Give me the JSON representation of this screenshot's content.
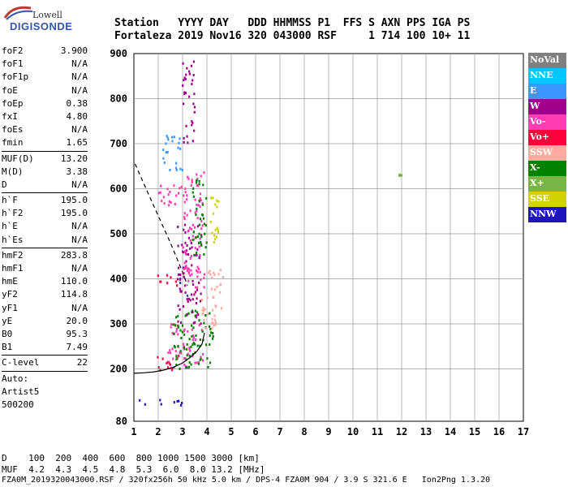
{
  "logo": {
    "line1": "Lowell",
    "line2": "DIGISONDE"
  },
  "header": {
    "labels": "Station   YYYY DAY   DDD HHMMSS P1  FFS S AXN PPS IGA PS",
    "values": "Fortaleza 2019 Nov16 320 043000 RSF     1 714 100 10+ 11"
  },
  "params": {
    "group1": [
      {
        "label": "foF2",
        "value": "3.900"
      },
      {
        "label": "foF1",
        "value": "N/A"
      },
      {
        "label": "foF1p",
        "value": "N/A"
      },
      {
        "label": "foE",
        "value": "N/A"
      },
      {
        "label": "foEp",
        "value": "0.38"
      },
      {
        "label": "fxI",
        "value": "4.80"
      },
      {
        "label": "foEs",
        "value": "N/A"
      },
      {
        "label": "fmin",
        "value": "1.65"
      }
    ],
    "group2": [
      {
        "label": "MUF(D)",
        "value": "13.20"
      },
      {
        "label": "M(D)",
        "value": "3.38"
      },
      {
        "label": "D",
        "value": "N/A"
      }
    ],
    "group3": [
      {
        "label": "h`F",
        "value": "195.0"
      },
      {
        "label": "h`F2",
        "value": "195.0"
      },
      {
        "label": "h`E",
        "value": "N/A"
      },
      {
        "label": "h`Es",
        "value": "N/A"
      }
    ],
    "group4": [
      {
        "label": "hmF2",
        "value": "283.8"
      },
      {
        "label": "hmF1",
        "value": "N/A"
      },
      {
        "label": "hmE",
        "value": "110.0"
      },
      {
        "label": "yF2",
        "value": "114.8"
      },
      {
        "label": "yF1",
        "value": "N/A"
      },
      {
        "label": "yE",
        "value": "20.0"
      },
      {
        "label": "B0",
        "value": "95.3"
      },
      {
        "label": "B1",
        "value": "7.49"
      }
    ],
    "group5": [
      {
        "label": "C-level",
        "value": "22"
      }
    ],
    "auto": [
      "Auto:",
      "Artist5",
      "500200"
    ]
  },
  "legend": [
    {
      "label": "NoVal",
      "color": "#808080"
    },
    {
      "label": "NNE",
      "color": "#00c8ff"
    },
    {
      "label": "E",
      "color": "#3c96ff"
    },
    {
      "label": "W",
      "color": "#a0008c"
    },
    {
      "label": "Vo-",
      "color": "#ff3cb4"
    },
    {
      "label": "Vo+",
      "color": "#ff003c"
    },
    {
      "label": "SSW",
      "color": "#ffaaa0"
    },
    {
      "label": "X-",
      "color": "#008200"
    },
    {
      "label": "X+",
      "color": "#78b446"
    },
    {
      "label": "SSE",
      "color": "#d2d200"
    },
    {
      "label": "NNW",
      "color": "#1e14be"
    }
  ],
  "bottom": {
    "line1": "D    100  200  400  600  800 1000 1500 3000 [km]",
    "line2": "MUF  4.2  4.3  4.5  4.8  5.3  6.0  8.0 13.2 [MHz]",
    "line3": "FZA0M_2019320043000.RSF / 320fx256h 50 kHz 5.0 km / DPS-4 FZA0M 904 / 3.9 S 321.6 E   Ion2Png 1.3.20"
  },
  "chart_data": {
    "type": "scatter",
    "x_ticks": [
      "1",
      "2",
      "3",
      "4",
      "5",
      "6",
      "7",
      "8",
      "9",
      "10",
      "11",
      "12",
      "13",
      "14",
      "15",
      "16",
      "17"
    ],
    "y_ticks": [
      "80",
      "200",
      "300",
      "400",
      "500",
      "600",
      "700",
      "800",
      "900"
    ],
    "xlim": [
      1,
      17
    ],
    "ylim": [
      80,
      900
    ],
    "y_axis_note": "non-linear height axis (80 km at bottom, 100 km per grid line above 200 km)",
    "profile_curve": {
      "x": [
        1.0,
        1.4,
        1.8,
        2.2,
        2.6,
        3.0,
        3.3,
        3.6,
        3.8,
        3.9
      ],
      "y": [
        190,
        191,
        193,
        197,
        203,
        213,
        225,
        240,
        255,
        280
      ]
    },
    "muf_curve": {
      "x": [
        1.05,
        1.5,
        2.0,
        2.5,
        3.0,
        3.2
      ],
      "y": [
        655,
        600,
        540,
        480,
        415,
        385
      ]
    },
    "clusters": [
      {
        "code": "Vo+",
        "x": [
          1.9,
          2.9
        ],
        "y": [
          195,
          230
        ]
      },
      {
        "code": "Vo-",
        "x": [
          2.4,
          3.9
        ],
        "y": [
          200,
          300
        ]
      },
      {
        "code": "X-",
        "x": [
          2.6,
          4.3
        ],
        "y": [
          200,
          330
        ]
      },
      {
        "code": "SSW",
        "x": [
          3.8,
          4.7
        ],
        "y": [
          290,
          420
        ]
      },
      {
        "code": "W",
        "x": [
          2.8,
          3.8
        ],
        "y": [
          300,
          520
        ]
      },
      {
        "code": "Vo-",
        "x": [
          3.0,
          3.9
        ],
        "y": [
          380,
          640
        ]
      },
      {
        "code": "X-",
        "x": [
          3.4,
          4.0
        ],
        "y": [
          450,
          620
        ]
      },
      {
        "code": "Vo+",
        "x": [
          1.9,
          2.8
        ],
        "y": [
          385,
          410
        ]
      },
      {
        "code": "Vo-",
        "x": [
          2.0,
          3.0
        ],
        "y": [
          560,
          610
        ]
      },
      {
        "code": "E",
        "x": [
          2.2,
          3.0
        ],
        "y": [
          640,
          720
        ]
      },
      {
        "code": "W",
        "x": [
          3.0,
          3.5
        ],
        "y": [
          700,
          890
        ]
      },
      {
        "code": "NNW",
        "x": [
          1.2,
          3.0
        ],
        "y": [
          115,
          130
        ]
      },
      {
        "code": "SSE",
        "x": [
          4.1,
          4.5
        ],
        "y": [
          480,
          600
        ]
      },
      {
        "code": "X+",
        "x": [
          11.9,
          12.0
        ],
        "y": [
          628,
          634
        ]
      }
    ]
  }
}
